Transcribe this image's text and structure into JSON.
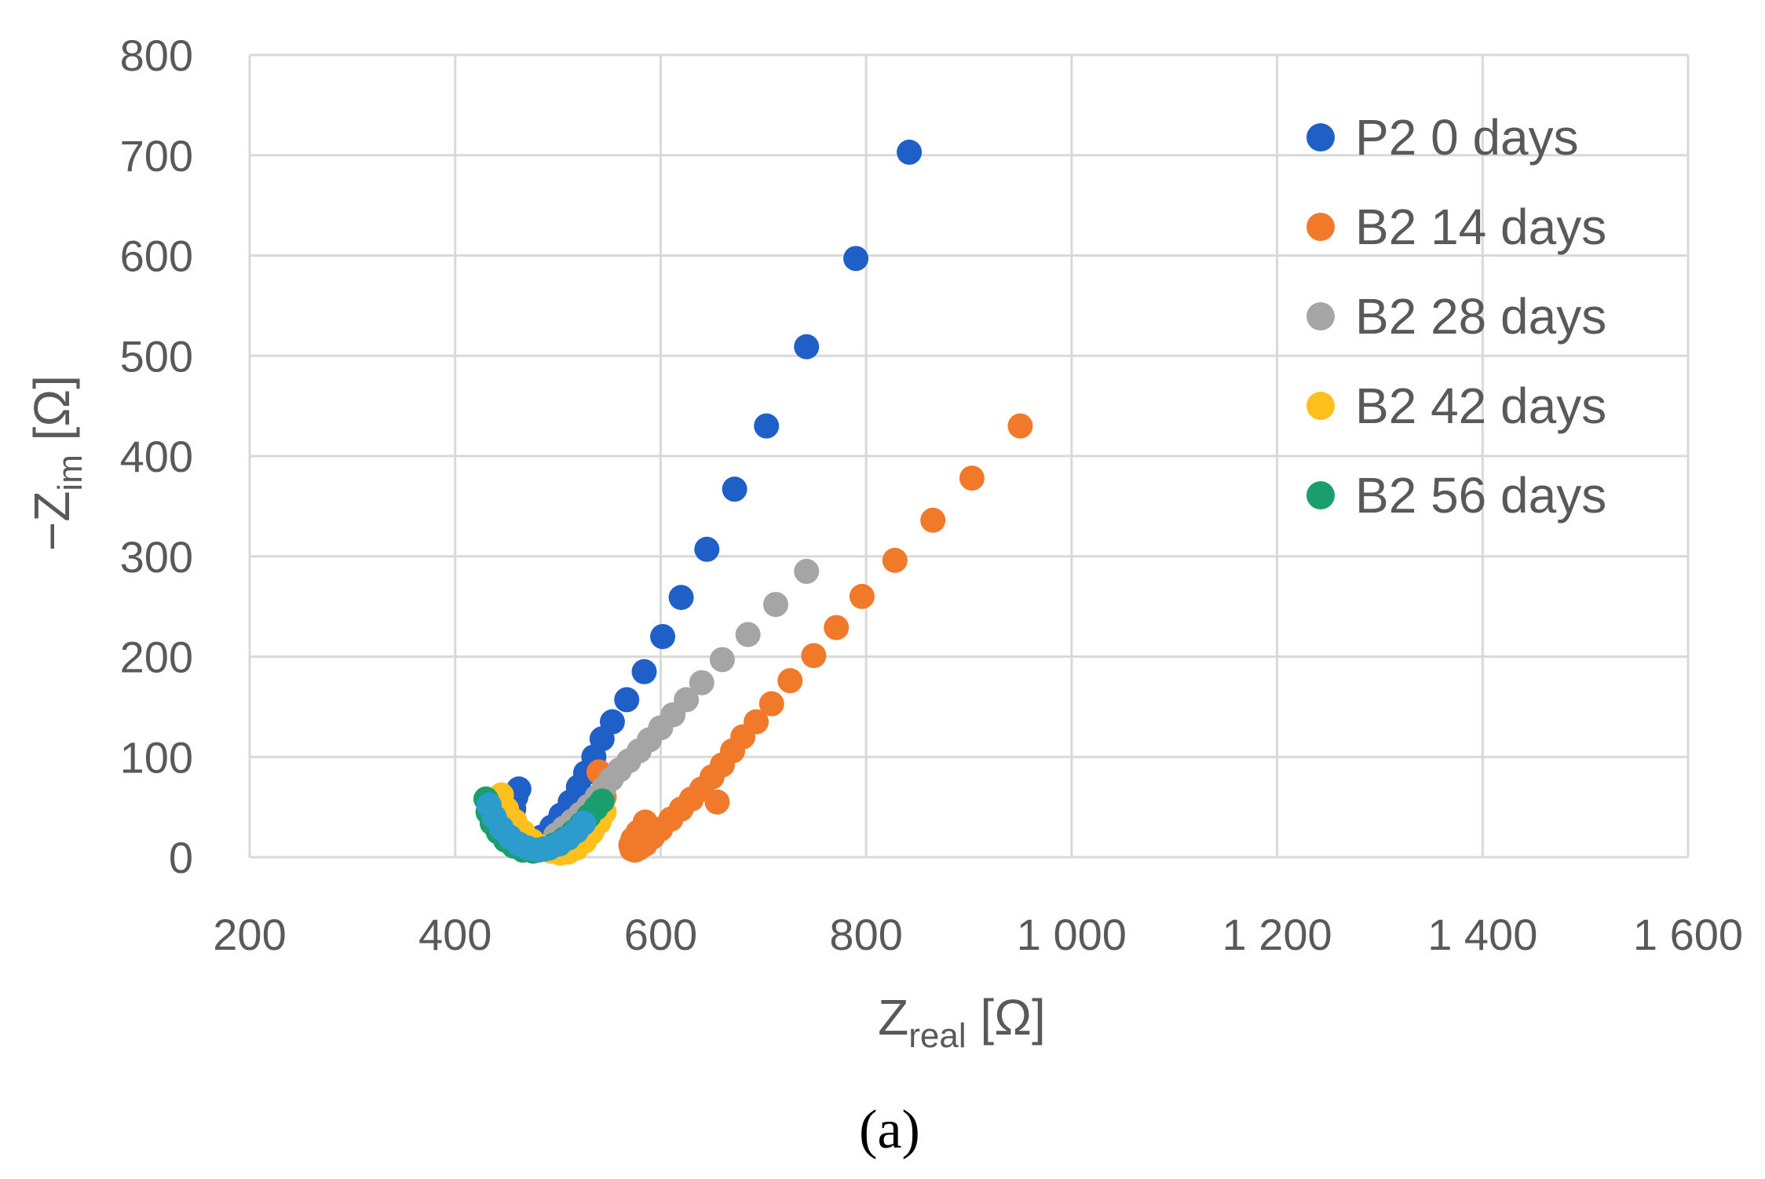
{
  "chart_data": {
    "type": "scatter",
    "xlabel_main": "Z",
    "xlabel_sub": "real",
    "xlabel_unit": " [Ω]",
    "ylabel_prefix": "−Z",
    "ylabel_sub": "im",
    "ylabel_unit": " [Ω]",
    "panel_label": "(a)",
    "xlim": [
      200,
      1600
    ],
    "ylim": [
      0,
      800
    ],
    "xticks": [
      200,
      400,
      600,
      800,
      1000,
      1200,
      1400,
      1600
    ],
    "xtick_labels": [
      "200",
      "400",
      "600",
      "800",
      "1 000",
      "1 200",
      "1 400",
      "1 600"
    ],
    "yticks": [
      0,
      100,
      200,
      300,
      400,
      500,
      600,
      700,
      800
    ],
    "ytick_labels": [
      "0",
      "100",
      "200",
      "300",
      "400",
      "500",
      "600",
      "700",
      "800"
    ],
    "grid": true,
    "legend_position": "top-right",
    "series": [
      {
        "name": "P2 0 days",
        "color": "#1f5fc8",
        "x": [
          842,
          790,
          742,
          703,
          672,
          645,
          620,
          602,
          584,
          567,
          553,
          543,
          535,
          527,
          520,
          512,
          503,
          494,
          484,
          475,
          468,
          462,
          458,
          457,
          459,
          462
        ],
        "y": [
          703,
          597,
          509,
          430,
          367,
          307,
          259,
          220,
          185,
          157,
          135,
          118,
          100,
          84,
          70,
          55,
          42,
          30,
          20,
          13,
          14,
          23,
          35,
          48,
          60,
          68
        ]
      },
      {
        "name": "B2 14 days",
        "color": "#f07a2a",
        "x": [
          950,
          903,
          865,
          828,
          796,
          771,
          749,
          726,
          708,
          693,
          680,
          670,
          660,
          650,
          640,
          630,
          620,
          610,
          600,
          592,
          585,
          579,
          575,
          572,
          571,
          573,
          578,
          585,
          655,
          545,
          540
        ],
        "y": [
          430,
          378,
          336,
          296,
          260,
          229,
          201,
          176,
          153,
          135,
          120,
          106,
          92,
          80,
          68,
          58,
          48,
          38,
          28,
          20,
          13,
          9,
          7,
          8,
          12,
          18,
          25,
          35,
          55,
          60,
          85
        ]
      },
      {
        "name": "B2 28 days",
        "color": "#a5a5a5",
        "x": [
          742,
          712,
          685,
          660,
          640,
          625,
          612,
          600,
          589,
          579,
          569,
          560,
          552,
          545,
          538,
          530,
          522,
          514,
          506,
          498
        ],
        "y": [
          285,
          252,
          222,
          197,
          174,
          157,
          142,
          129,
          117,
          106,
          96,
          87,
          78,
          69,
          60,
          51,
          43,
          36,
          29,
          22
        ]
      },
      {
        "name": "B2 42 days",
        "color": "#fdc01c",
        "x": [
          445,
          450,
          458,
          466,
          475,
          484,
          493,
          502,
          510,
          518,
          526,
          533,
          540,
          545
        ],
        "y": [
          62,
          48,
          36,
          25,
          16,
          10,
          6,
          4,
          5,
          9,
          16,
          25,
          35,
          45
        ]
      },
      {
        "name": "B2 56 days",
        "color": "#1a9e6e",
        "x": [
          430,
          432,
          436,
          442,
          449,
          457,
          466,
          476,
          486,
          496,
          506,
          515,
          523,
          530,
          537,
          543
        ],
        "y": [
          58,
          45,
          34,
          25,
          17,
          11,
          7,
          6,
          8,
          12,
          18,
          25,
          33,
          41,
          49,
          56
        ]
      },
      {
        "name": "",
        "color": "#2b9ccc",
        "x": [
          433,
          438,
          445,
          453,
          462,
          471,
          481,
          491,
          501,
          510,
          518,
          525
        ],
        "y": [
          52,
          40,
          29,
          20,
          13,
          9,
          7,
          9,
          13,
          19,
          26,
          34
        ]
      }
    ]
  }
}
